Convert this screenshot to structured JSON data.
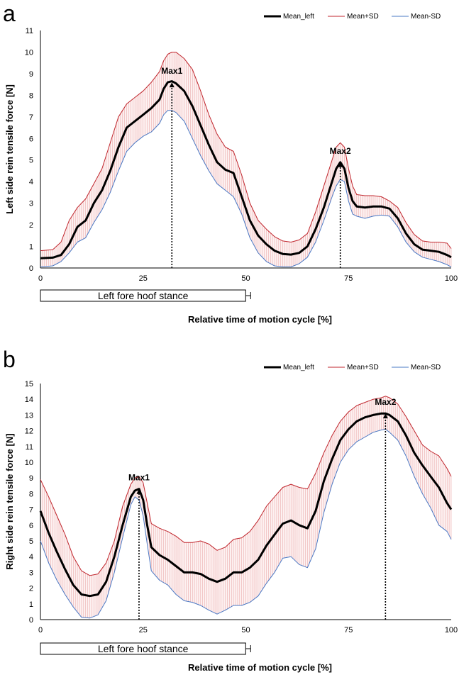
{
  "chart_data": [
    {
      "type": "line",
      "panel_label": "a",
      "ylabel": "Left side rein tensile force [N]",
      "xlabel": "Relative time of motion cycle [%]",
      "xlim": [
        0,
        100
      ],
      "ylim": [
        0,
        11
      ],
      "xticks": [
        0,
        25,
        50,
        75,
        100
      ],
      "yticks": [
        0,
        1,
        2,
        3,
        4,
        5,
        6,
        7,
        8,
        9,
        10,
        11
      ],
      "stance_label": "Left fore hoof stance",
      "stance_range": [
        0,
        51
      ],
      "peaks": [
        {
          "label": "Max1",
          "x": 32,
          "y": 8.6
        },
        {
          "label": "Max2",
          "x": 73,
          "y": 4.9
        }
      ],
      "legend": [
        "Mean_left",
        "Mean+SD",
        "Mean-SD"
      ],
      "colors": {
        "mean": "#000000",
        "plus": "#c0262d",
        "minus": "#4a78c4",
        "fill": "#e8a0a0"
      },
      "series": [
        {
          "name": "Mean_left",
          "x": [
            0,
            3,
            5,
            7,
            9,
            11,
            13,
            15,
            17,
            19,
            21,
            23,
            25,
            27,
            29,
            30,
            31,
            32,
            33,
            35,
            37,
            39,
            41,
            43,
            45,
            47,
            49,
            51,
            53,
            55,
            57,
            59,
            61,
            63,
            65,
            67,
            69,
            71,
            72,
            73,
            74,
            75,
            76,
            77,
            79,
            81,
            83,
            85,
            87,
            89,
            91,
            93,
            95,
            97,
            99,
            100
          ],
          "values": [
            0.45,
            0.48,
            0.6,
            1.1,
            1.9,
            2.2,
            3.0,
            3.6,
            4.5,
            5.6,
            6.5,
            6.8,
            7.1,
            7.4,
            7.8,
            8.3,
            8.6,
            8.65,
            8.55,
            8.2,
            7.5,
            6.6,
            5.7,
            4.9,
            4.55,
            4.4,
            3.3,
            2.2,
            1.5,
            1.1,
            0.8,
            0.65,
            0.62,
            0.7,
            1.0,
            1.8,
            2.8,
            4.0,
            4.6,
            4.9,
            4.6,
            3.7,
            3.1,
            2.85,
            2.8,
            2.85,
            2.85,
            2.75,
            2.3,
            1.6,
            1.1,
            0.85,
            0.8,
            0.75,
            0.6,
            0.5
          ]
        },
        {
          "name": "Mean+SD",
          "x": [
            0,
            3,
            5,
            7,
            9,
            11,
            13,
            15,
            17,
            19,
            21,
            23,
            25,
            27,
            29,
            30,
            31,
            32,
            33,
            35,
            37,
            39,
            41,
            43,
            45,
            47,
            49,
            51,
            53,
            55,
            57,
            59,
            61,
            63,
            65,
            67,
            69,
            71,
            72,
            73,
            74,
            75,
            76,
            77,
            79,
            81,
            83,
            85,
            87,
            89,
            91,
            93,
            95,
            97,
            99,
            100
          ],
          "values": [
            0.8,
            0.85,
            1.2,
            2.2,
            2.8,
            3.2,
            3.9,
            4.6,
            5.8,
            7.0,
            7.6,
            7.9,
            8.2,
            8.6,
            9.1,
            9.6,
            9.9,
            10.0,
            10.0,
            9.7,
            9.2,
            8.2,
            7.1,
            6.2,
            5.6,
            5.4,
            4.3,
            3.0,
            2.2,
            1.8,
            1.45,
            1.25,
            1.2,
            1.3,
            1.6,
            2.6,
            3.8,
            5.0,
            5.6,
            5.8,
            5.6,
            4.6,
            3.8,
            3.4,
            3.35,
            3.35,
            3.3,
            3.1,
            2.8,
            2.1,
            1.55,
            1.25,
            1.2,
            1.2,
            1.15,
            0.9
          ]
        },
        {
          "name": "Mean-SD",
          "x": [
            0,
            3,
            5,
            7,
            9,
            11,
            13,
            15,
            17,
            19,
            21,
            23,
            25,
            27,
            29,
            30,
            31,
            32,
            33,
            35,
            37,
            39,
            41,
            43,
            45,
            47,
            49,
            51,
            53,
            55,
            57,
            59,
            61,
            63,
            65,
            67,
            69,
            71,
            72,
            73,
            74,
            75,
            76,
            77,
            79,
            81,
            83,
            85,
            87,
            89,
            91,
            93,
            95,
            97,
            99,
            100
          ],
          "values": [
            0.05,
            0.1,
            0.3,
            0.7,
            1.2,
            1.4,
            2.1,
            2.7,
            3.5,
            4.5,
            5.4,
            5.8,
            6.1,
            6.3,
            6.7,
            7.1,
            7.3,
            7.3,
            7.2,
            6.8,
            6.0,
            5.2,
            4.5,
            3.9,
            3.6,
            3.3,
            2.5,
            1.4,
            0.7,
            0.3,
            0.1,
            0.05,
            0.05,
            0.2,
            0.5,
            1.2,
            2.2,
            3.3,
            3.8,
            4.1,
            4.0,
            3.1,
            2.5,
            2.4,
            2.3,
            2.4,
            2.45,
            2.4,
            1.9,
            1.2,
            0.75,
            0.5,
            0.4,
            0.3,
            0.15,
            0.05
          ]
        }
      ]
    },
    {
      "type": "line",
      "panel_label": "b",
      "ylabel": "Right side rein tensile force [N]",
      "xlabel": "Relative time of motion cycle [%]",
      "xlim": [
        0,
        100
      ],
      "ylim": [
        0,
        15
      ],
      "xticks": [
        0,
        25,
        50,
        75,
        100
      ],
      "yticks": [
        0,
        1,
        2,
        3,
        4,
        5,
        6,
        7,
        8,
        9,
        10,
        11,
        12,
        13,
        14,
        15
      ],
      "stance_label": "Left fore hoof stance",
      "stance_range": [
        0,
        51
      ],
      "peaks": [
        {
          "label": "Max1",
          "x": 24,
          "y": 8.3
        },
        {
          "label": "Max2",
          "x": 84,
          "y": 13.1
        }
      ],
      "legend": [
        "Mean_left",
        "Mean+SD",
        "Mean-SD"
      ],
      "colors": {
        "mean": "#000000",
        "plus": "#c0262d",
        "minus": "#4a78c4",
        "fill": "#e8a0a0"
      },
      "series": [
        {
          "name": "Mean_left",
          "x": [
            0,
            2,
            4,
            6,
            8,
            10,
            12,
            14,
            16,
            18,
            20,
            22,
            23,
            24,
            25,
            26,
            27,
            29,
            31,
            33,
            35,
            37,
            39,
            41,
            43,
            45,
            47,
            49,
            51,
            53,
            55,
            57,
            59,
            61,
            63,
            65,
            67,
            69,
            71,
            73,
            75,
            77,
            79,
            81,
            83,
            84,
            85,
            87,
            89,
            91,
            93,
            95,
            97,
            99,
            100
          ],
          "values": [
            6.9,
            5.5,
            4.3,
            3.2,
            2.2,
            1.6,
            1.5,
            1.6,
            2.4,
            4.0,
            6.0,
            7.8,
            8.2,
            8.3,
            7.6,
            6.0,
            4.6,
            4.1,
            3.8,
            3.4,
            3.0,
            3.0,
            2.9,
            2.6,
            2.4,
            2.6,
            3.0,
            3.0,
            3.3,
            3.8,
            4.7,
            5.4,
            6.1,
            6.3,
            6.0,
            5.8,
            6.9,
            8.8,
            10.2,
            11.4,
            12.1,
            12.6,
            12.85,
            13.0,
            13.1,
            13.1,
            13.0,
            12.6,
            11.7,
            10.6,
            9.8,
            9.1,
            8.4,
            7.4,
            7.0
          ]
        },
        {
          "name": "Mean+SD",
          "x": [
            0,
            2,
            4,
            6,
            8,
            10,
            12,
            14,
            16,
            18,
            20,
            22,
            23,
            24,
            25,
            26,
            27,
            29,
            31,
            33,
            35,
            37,
            39,
            41,
            43,
            45,
            47,
            49,
            51,
            53,
            55,
            57,
            59,
            61,
            63,
            65,
            67,
            69,
            71,
            73,
            75,
            77,
            79,
            81,
            83,
            84,
            85,
            87,
            89,
            91,
            93,
            95,
            97,
            99,
            100
          ],
          "values": [
            8.9,
            7.8,
            6.6,
            5.4,
            4.0,
            3.1,
            2.8,
            2.9,
            3.6,
            5.0,
            7.2,
            8.6,
            9.0,
            9.1,
            8.7,
            7.4,
            6.1,
            5.8,
            5.6,
            5.3,
            4.9,
            4.9,
            5.0,
            4.8,
            4.4,
            4.6,
            5.1,
            5.2,
            5.6,
            6.3,
            7.2,
            7.8,
            8.4,
            8.6,
            8.4,
            8.3,
            9.3,
            10.6,
            11.7,
            12.6,
            13.2,
            13.6,
            13.8,
            14.0,
            14.1,
            14.2,
            14.1,
            13.7,
            12.9,
            12.0,
            11.1,
            10.7,
            10.4,
            9.6,
            9.1
          ]
        },
        {
          "name": "Mean-SD",
          "x": [
            0,
            2,
            4,
            6,
            8,
            10,
            12,
            14,
            16,
            18,
            20,
            22,
            23,
            24,
            25,
            26,
            27,
            29,
            31,
            33,
            35,
            37,
            39,
            41,
            43,
            45,
            47,
            49,
            51,
            53,
            55,
            57,
            59,
            61,
            63,
            65,
            67,
            69,
            71,
            73,
            75,
            77,
            79,
            81,
            83,
            84,
            85,
            87,
            89,
            91,
            93,
            95,
            97,
            99,
            100
          ],
          "values": [
            5.0,
            3.6,
            2.5,
            1.6,
            0.8,
            0.15,
            0.1,
            0.3,
            1.2,
            3.0,
            5.2,
            7.3,
            7.8,
            7.6,
            6.6,
            4.8,
            3.1,
            2.5,
            2.2,
            1.6,
            1.2,
            1.1,
            0.9,
            0.6,
            0.35,
            0.6,
            0.9,
            0.9,
            1.1,
            1.5,
            2.3,
            3.0,
            3.9,
            4.0,
            3.5,
            3.3,
            4.5,
            6.8,
            8.6,
            10.0,
            10.8,
            11.3,
            11.6,
            11.9,
            12.05,
            12.1,
            11.9,
            11.4,
            10.4,
            9.1,
            8.0,
            7.1,
            6.0,
            5.6,
            5.1
          ]
        }
      ]
    }
  ]
}
